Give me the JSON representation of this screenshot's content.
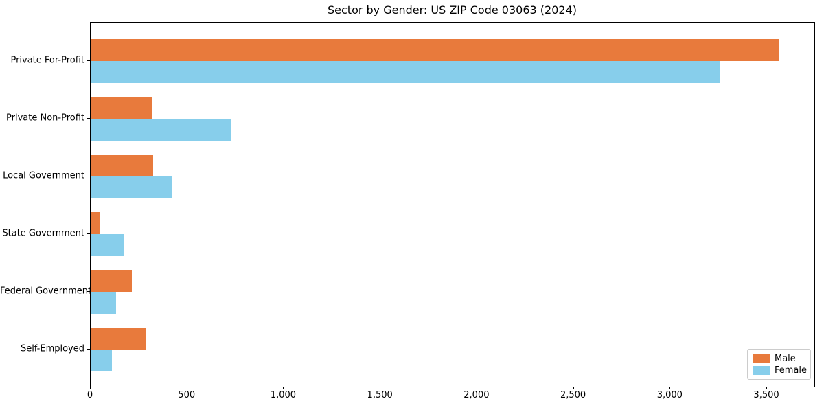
{
  "figure": {
    "background": "#ffffff"
  },
  "chart_data": {
    "type": "bar",
    "orientation": "horizontal",
    "title": "Sector by Gender: US ZIP Code 03063 (2024)",
    "categories": [
      "Private For-Profit",
      "Private Non-Profit",
      "Local Government",
      "State Government",
      "Federal Government",
      "Self-Employed"
    ],
    "series": [
      {
        "name": "Male",
        "color": "#e87a3c",
        "values": [
          3565,
          318,
          324,
          49,
          214,
          289
        ]
      },
      {
        "name": "Female",
        "color": "#87ceeb",
        "values": [
          3255,
          727,
          422,
          169,
          130,
          111
        ]
      }
    ],
    "xlabel": "",
    "ylabel": "",
    "xlim": [
      0,
      3745
    ],
    "xticks": [
      0,
      500,
      1000,
      1500,
      2000,
      2500,
      3000,
      3500
    ],
    "xtick_labels": [
      "0",
      "500",
      "1,000",
      "1,500",
      "2,000",
      "2,500",
      "3,000",
      "3,500"
    ],
    "grid": false,
    "legend": {
      "position": "lower-right",
      "labels": [
        "Male",
        "Female"
      ]
    }
  }
}
